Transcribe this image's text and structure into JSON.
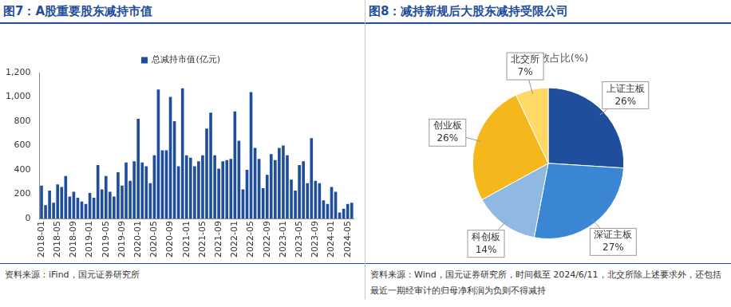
{
  "chart_data": [
    {
      "type": "bar",
      "title": "图7：A股重要股东减持市值",
      "source": "资料来源：iFind，国元证券研究所",
      "categories": [
        "2018-01",
        null,
        null,
        null,
        "2018-05",
        null,
        null,
        null,
        "2018-09",
        null,
        null,
        null,
        "2019-01",
        null,
        null,
        null,
        "2019-05",
        null,
        null,
        null,
        "2019-09",
        null,
        null,
        null,
        "2020-01",
        null,
        null,
        null,
        "2020-05",
        null,
        null,
        null,
        "2020-09",
        null,
        null,
        null,
        "2021-01",
        null,
        null,
        null,
        "2021-05",
        null,
        null,
        null,
        "2021-09",
        null,
        null,
        null,
        "2022-01",
        null,
        null,
        null,
        "2022-05",
        null,
        null,
        null,
        "2022-09",
        null,
        null,
        null,
        "2023-01",
        null,
        null,
        null,
        "2023-05",
        null,
        null,
        null,
        "2023-09",
        null,
        null,
        null,
        "2024-01",
        null,
        null,
        null,
        "2024-05",
        null
      ],
      "series": [
        {
          "name": "总减持市值(亿元)",
          "color": "#1f4e9c",
          "values": [
            270,
            110,
            230,
            130,
            280,
            260,
            350,
            180,
            220,
            170,
            140,
            120,
            210,
            170,
            440,
            240,
            350,
            220,
            180,
            380,
            270,
            460,
            310,
            470,
            820,
            460,
            430,
            290,
            520,
            1060,
            560,
            560,
            1000,
            800,
            430,
            1070,
            520,
            500,
            430,
            470,
            520,
            740,
            870,
            520,
            410,
            470,
            480,
            490,
            880,
            640,
            240,
            400,
            1040,
            580,
            490,
            250,
            360,
            530,
            480,
            580,
            600,
            520,
            320,
            230,
            440,
            470,
            290,
            660,
            310,
            290,
            150,
            120,
            260,
            220,
            50,
            80,
            120,
            130
          ]
        }
      ],
      "ylim": [
        0,
        1200
      ],
      "yticks": [
        0,
        200,
        400,
        600,
        800,
        {
          "value": 1000,
          "label": "1,000"
        },
        {
          "value": 1200,
          "label": "1,200"
        }
      ],
      "grid": false,
      "legend": "top"
    },
    {
      "type": "pie",
      "title": "图8：减持新规后大股东减持受限公司",
      "subtitle": "受限家数占比(%)",
      "source": "资料来源：Wind，国元证券研究所，时间截至 2024/6/11，北交所除上述要求外，还包括最近一期经审计的归母净利润为负则不得减持",
      "categories": [
        "上证主板",
        "深证主板",
        "科创板",
        "创业板",
        "北交所"
      ],
      "values": [
        26,
        27,
        14,
        26,
        7
      ],
      "value_labels": [
        "26%",
        "27%",
        "14%",
        "26%",
        "7%"
      ],
      "colors": [
        "#1f4e9c",
        "#3a86d4",
        "#8fb8e3",
        "#f5b81c",
        "#ffd966"
      ],
      "data_labels": true
    }
  ]
}
